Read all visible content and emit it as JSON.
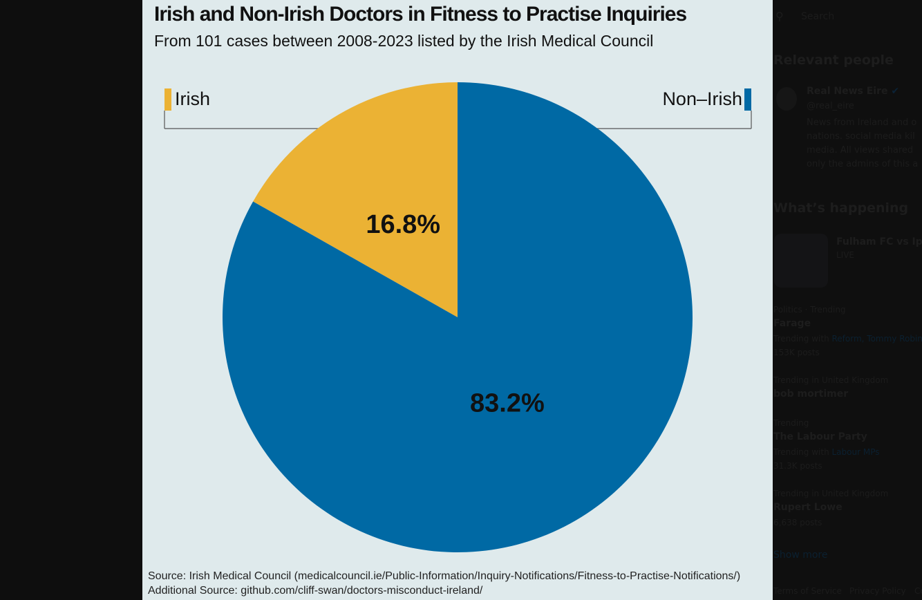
{
  "chart_data": {
    "type": "pie",
    "title": "Irish and Non-Irish Doctors in Fitness to Practise Inquiries",
    "subtitle": "From 101 cases between 2008-2023 listed by the Irish Medical Council",
    "categories": [
      "Irish",
      "Non–Irish"
    ],
    "values": [
      16.8,
      83.2
    ],
    "data_labels": [
      "16.8%",
      "83.2%"
    ],
    "colors": [
      "#ebb234",
      "#0069a4"
    ],
    "legend_placement": "top",
    "sources": [
      "Source: Irish Medical Council (medicalcouncil.ie/Public-Information/Inquiry-Notifications/Fitness-to-Practise-Notifications/)",
      "Additional Source: github.com/cliff-swan/doctors-misconduct-ireland/"
    ]
  },
  "sidebar": {
    "search_placeholder": "Search",
    "relevant_people_heading": "Relevant people",
    "person": {
      "name": "Real News Eire",
      "handle": "@real_eire",
      "bio_lines": [
        "News from Ireland and o",
        "nations. social media kil",
        "media. All views shared",
        "only the admins of this a"
      ]
    },
    "whats_happening_heading": "What’s happening",
    "live_event": {
      "title": "Fulham FC vs Ipsw",
      "status": "LIVE"
    },
    "trends": [
      {
        "context": "Politics · Trending",
        "name": "Farage",
        "with_label": "Trending with",
        "with_links": "Reform, Tommy Robin",
        "posts": "153K posts"
      },
      {
        "context": "Trending in United Kingdom",
        "name": "bob mortimer"
      },
      {
        "context": "Trending",
        "name": "The Labour Party",
        "with_label": "Trending with",
        "with_links": "Labour MPs",
        "posts": "31.3K posts"
      },
      {
        "context": "Trending in United Kingdom",
        "name": "Rupert Lowe",
        "posts": "6,638 posts"
      }
    ],
    "show_more": "Show more",
    "footer_links": [
      "Terms of Service",
      "Privacy Policy",
      "Co"
    ]
  }
}
